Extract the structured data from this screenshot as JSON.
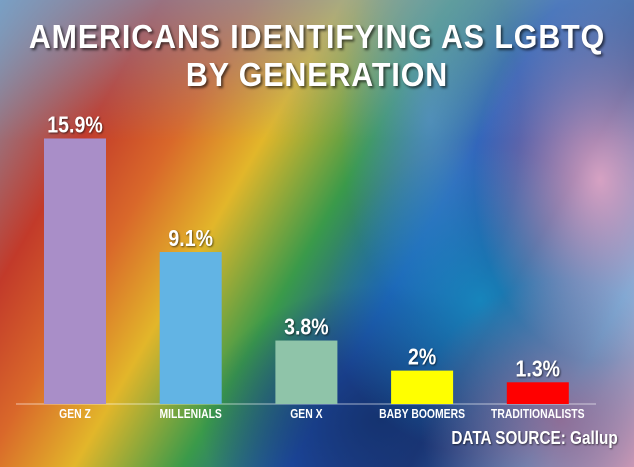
{
  "chart_data": {
    "type": "bar",
    "title": "AMERICANS IDENTIFYING AS LGBTQ BY GENERATION",
    "title_lines": [
      "AMERICANS IDENTIFYING AS LGBTQ",
      "BY GENERATION"
    ],
    "categories": [
      "GEN Z",
      "MILLENIALS",
      "GEN X",
      "BABY BOOMERS",
      "TRADITIONALISTS"
    ],
    "values": [
      15.9,
      9.1,
      3.8,
      2,
      1.3
    ],
    "data_labels": [
      "15.9%",
      "9.1%",
      "3.8%",
      "2%",
      "1.3%"
    ],
    "colors": [
      "#a98ec8",
      "#62b4e4",
      "#8fc4a9",
      "#ffff00",
      "#ff0000"
    ],
    "xlabel": "",
    "ylabel": "",
    "ylim": [
      0,
      16
    ],
    "grid": false,
    "source": "DATA SOURCE: Gallup"
  }
}
